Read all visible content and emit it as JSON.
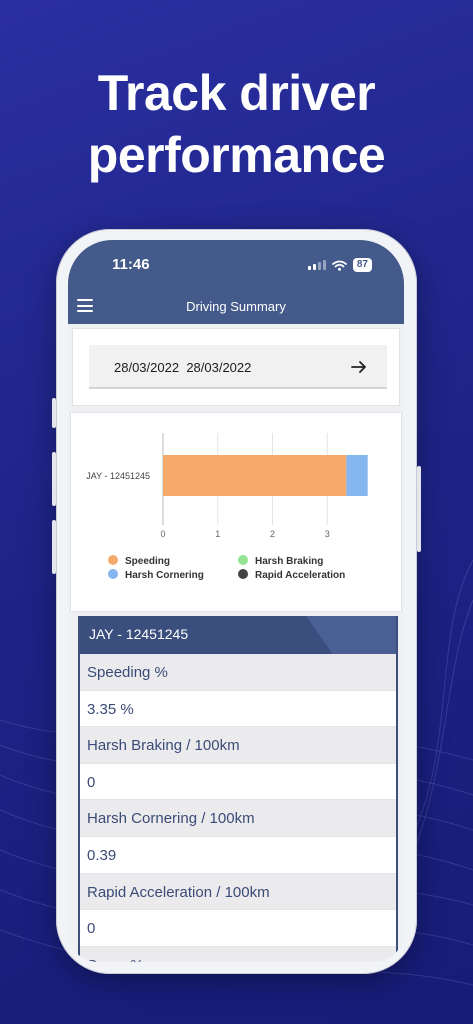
{
  "headline": {
    "line1": "Track driver",
    "line2": "performance"
  },
  "status_bar": {
    "time": "11:46",
    "battery": "87"
  },
  "app": {
    "title": "Driving Summary"
  },
  "date_range": {
    "start": "28/03/2022",
    "end": "28/03/2022"
  },
  "chart_data": {
    "type": "bar",
    "orientation": "horizontal",
    "stacked": true,
    "categories": [
      "JAY - 12451245"
    ],
    "series": [
      {
        "name": "Speeding",
        "values": [
          3.35
        ],
        "color": "#f5aa6c"
      },
      {
        "name": "Harsh Braking",
        "values": [
          0
        ],
        "color": "#93e38f"
      },
      {
        "name": "Harsh Cornering",
        "values": [
          0.39
        ],
        "color": "#85b6f0"
      },
      {
        "name": "Rapid Acceleration",
        "values": [
          0
        ],
        "color": "#444444"
      }
    ],
    "xticks": [
      "0",
      "1",
      "2",
      "3"
    ],
    "xlim": [
      0,
      3.8
    ],
    "grid": true,
    "legend": "bottom"
  },
  "table": {
    "header": "JAY - 12451245",
    "rows": [
      {
        "label": "Speeding %",
        "value": "3.35 %"
      },
      {
        "label": "Harsh Braking / 100km",
        "value": "0"
      },
      {
        "label": "Harsh Cornering / 100km",
        "value": "0.39"
      },
      {
        "label": "Rapid Acceleration / 100km",
        "value": "0"
      }
    ],
    "cut_label": "Score %"
  }
}
